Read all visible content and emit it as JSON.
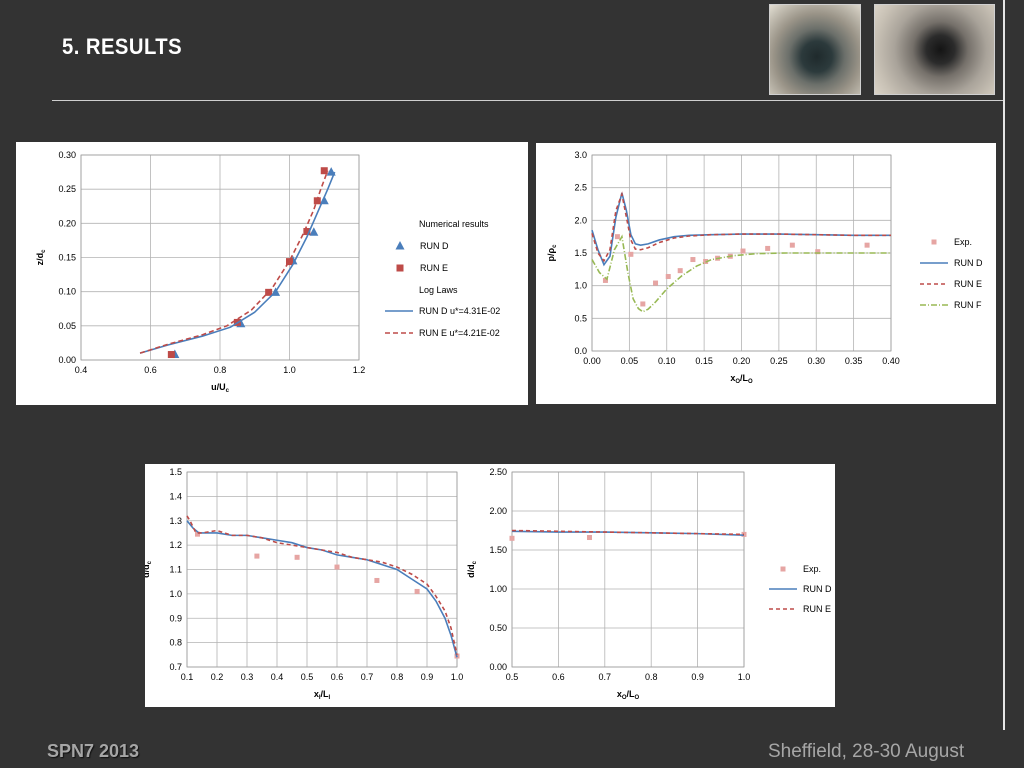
{
  "slide": {
    "title": "5. RESULTS",
    "footer_left": "SPN7 2013",
    "footer_right": "Sheffield, 28-30 August"
  },
  "colors": {
    "run_d": "#4a7ebb",
    "run_e": "#be4b48",
    "run_f": "#98b954",
    "exp": "#e6a5a3",
    "grid": "#b3b3b3"
  },
  "chart_data": [
    {
      "type": "scatter",
      "xlabel": "u/U",
      "xlabel_sub": "c",
      "ylabel": "z/d",
      "ylabel_sub": "c",
      "xlim": [
        0.4,
        1.2
      ],
      "ylim": [
        0.0,
        0.3
      ],
      "xticks": [
        "0.4",
        "0.6",
        "0.8",
        "1.0",
        "1.2"
      ],
      "yticks": [
        "0.00",
        "0.05",
        "0.10",
        "0.15",
        "0.20",
        "0.25",
        "0.30"
      ],
      "grid": true,
      "legend_position": "right",
      "legend_header_1": "Numerical results",
      "legend_header_2": "Log Laws",
      "series": [
        {
          "name": "RUN D",
          "kind": "markers",
          "marker": "triangle",
          "color": "#4a7ebb",
          "x": [
            0.67,
            0.86,
            0.96,
            1.01,
            1.07,
            1.1,
            1.12
          ],
          "y": [
            0.008,
            0.053,
            0.099,
            0.145,
            0.187,
            0.233,
            0.275
          ]
        },
        {
          "name": "RUN E",
          "kind": "markers",
          "marker": "square",
          "color": "#be4b48",
          "x": [
            0.66,
            0.85,
            0.94,
            1.0,
            1.05,
            1.08,
            1.1
          ],
          "y": [
            0.008,
            0.055,
            0.099,
            0.144,
            0.188,
            0.233,
            0.277
          ]
        },
        {
          "name": "RUN D u*=4.31E-02",
          "kind": "line",
          "dash": "",
          "color": "#4a7ebb",
          "x": [
            0.57,
            0.65,
            0.75,
            0.83,
            0.9,
            0.96,
            1.01,
            1.05,
            1.08,
            1.11,
            1.13
          ],
          "y": [
            0.01,
            0.022,
            0.035,
            0.048,
            0.07,
            0.1,
            0.14,
            0.18,
            0.215,
            0.25,
            0.275
          ]
        },
        {
          "name": "RUN E u*=4.21E-02",
          "kind": "line",
          "dash": "5,3",
          "color": "#be4b48",
          "x": [
            0.57,
            0.65,
            0.75,
            0.82,
            0.89,
            0.95,
            1.0,
            1.04,
            1.07,
            1.09,
            1.11
          ],
          "y": [
            0.01,
            0.023,
            0.037,
            0.05,
            0.073,
            0.105,
            0.145,
            0.185,
            0.22,
            0.25,
            0.277
          ]
        }
      ]
    },
    {
      "type": "line",
      "xlabel": "x/L",
      "xlabel_sub": "O",
      "xlabel_sub2": "O",
      "ylabel": "p/ρ",
      "ylabel_sub": "c",
      "xlim": [
        0.0,
        0.4
      ],
      "ylim": [
        0.0,
        3.0
      ],
      "xticks": [
        "0.00",
        "0.05",
        "0.10",
        "0.15",
        "0.20",
        "0.25",
        "0.30",
        "0.35",
        "0.40"
      ],
      "yticks": [
        "0.0",
        "0.5",
        "1.0",
        "1.5",
        "2.0",
        "2.5",
        "3.0"
      ],
      "grid": true,
      "legend_position": "right",
      "series": [
        {
          "name": "Exp.",
          "kind": "markers",
          "marker": "square",
          "color": "#e6a5a3",
          "x": [
            0.018,
            0.034,
            0.052,
            0.068,
            0.085,
            0.102,
            0.118,
            0.135,
            0.152,
            0.168,
            0.185,
            0.202,
            0.235,
            0.268,
            0.302,
            0.368
          ],
          "y": [
            1.08,
            1.75,
            1.48,
            0.72,
            1.04,
            1.14,
            1.23,
            1.4,
            1.37,
            1.42,
            1.45,
            1.53,
            1.57,
            1.62,
            1.52,
            1.62
          ]
        },
        {
          "name": "RUN D",
          "kind": "line",
          "dash": "",
          "color": "#4a7ebb",
          "x": [
            0.0,
            0.008,
            0.016,
            0.024,
            0.032,
            0.04,
            0.046,
            0.052,
            0.058,
            0.065,
            0.075,
            0.09,
            0.11,
            0.13,
            0.16,
            0.2,
            0.25,
            0.3,
            0.35,
            0.4
          ],
          "y": [
            1.85,
            1.55,
            1.32,
            1.45,
            2.05,
            2.42,
            2.15,
            1.78,
            1.64,
            1.62,
            1.64,
            1.7,
            1.75,
            1.77,
            1.78,
            1.79,
            1.79,
            1.78,
            1.77,
            1.77
          ]
        },
        {
          "name": "RUN E",
          "kind": "line",
          "dash": "4,3",
          "color": "#be4b48",
          "x": [
            0.0,
            0.008,
            0.016,
            0.024,
            0.032,
            0.04,
            0.046,
            0.052,
            0.058,
            0.065,
            0.075,
            0.09,
            0.11,
            0.13,
            0.16,
            0.2,
            0.25,
            0.3,
            0.35,
            0.4
          ],
          "y": [
            1.8,
            1.5,
            1.38,
            1.55,
            2.15,
            2.4,
            2.05,
            1.7,
            1.56,
            1.55,
            1.58,
            1.66,
            1.73,
            1.76,
            1.78,
            1.79,
            1.79,
            1.78,
            1.77,
            1.77
          ]
        },
        {
          "name": "RUN F",
          "kind": "line",
          "dash": "6,2,1,2",
          "color": "#98b954",
          "x": [
            0.0,
            0.01,
            0.02,
            0.03,
            0.04,
            0.048,
            0.055,
            0.062,
            0.068,
            0.075,
            0.085,
            0.1,
            0.12,
            0.14,
            0.16,
            0.19,
            0.22,
            0.26,
            0.3,
            0.35,
            0.4
          ],
          "y": [
            1.4,
            1.2,
            1.1,
            1.55,
            1.75,
            1.2,
            0.8,
            0.65,
            0.6,
            0.64,
            0.75,
            0.95,
            1.15,
            1.3,
            1.4,
            1.46,
            1.49,
            1.5,
            1.5,
            1.5,
            1.5
          ]
        }
      ]
    },
    {
      "type": "line",
      "xlabel": "x/L",
      "xlabel_sub": "I",
      "xlabel_sub2": "I",
      "ylabel": "d/d",
      "ylabel_sub": "c",
      "xlim": [
        0.1,
        1.0
      ],
      "ylim": [
        0.7,
        1.5
      ],
      "xticks": [
        "0.1",
        "0.2",
        "0.3",
        "0.4",
        "0.5",
        "0.6",
        "0.7",
        "0.8",
        "0.9",
        "1.0"
      ],
      "yticks": [
        "0.7",
        "0.8",
        "0.9",
        "1.0",
        "1.1",
        "1.2",
        "1.3",
        "1.4",
        "1.5"
      ],
      "grid": true,
      "legend_position": "none",
      "series": [
        {
          "name": "Exp.",
          "kind": "markers",
          "marker": "square",
          "color": "#e6a5a3",
          "x": [
            0.135,
            0.333,
            0.467,
            0.6,
            0.733,
            0.867,
            1.0
          ],
          "y": [
            1.245,
            1.155,
            1.15,
            1.11,
            1.055,
            1.01,
            0.745
          ]
        },
        {
          "name": "RUN D",
          "kind": "line",
          "dash": "",
          "color": "#4a7ebb",
          "x": [
            0.1,
            0.12,
            0.14,
            0.17,
            0.2,
            0.25,
            0.3,
            0.35,
            0.4,
            0.45,
            0.5,
            0.55,
            0.6,
            0.65,
            0.7,
            0.75,
            0.8,
            0.85,
            0.9,
            0.93,
            0.96,
            0.98,
            1.0
          ],
          "y": [
            1.3,
            1.27,
            1.25,
            1.25,
            1.25,
            1.24,
            1.24,
            1.23,
            1.22,
            1.21,
            1.19,
            1.18,
            1.16,
            1.15,
            1.14,
            1.12,
            1.1,
            1.06,
            1.02,
            0.97,
            0.9,
            0.83,
            0.74
          ]
        },
        {
          "name": "RUN E",
          "kind": "line",
          "dash": "4,3",
          "color": "#be4b48",
          "x": [
            0.1,
            0.11,
            0.13,
            0.15,
            0.2,
            0.25,
            0.3,
            0.35,
            0.4,
            0.45,
            0.5,
            0.55,
            0.6,
            0.65,
            0.7,
            0.75,
            0.8,
            0.85,
            0.9,
            0.93,
            0.96,
            0.98,
            1.0
          ],
          "y": [
            1.32,
            1.3,
            1.25,
            1.25,
            1.26,
            1.24,
            1.24,
            1.23,
            1.21,
            1.2,
            1.19,
            1.18,
            1.17,
            1.15,
            1.14,
            1.13,
            1.11,
            1.08,
            1.04,
            0.99,
            0.93,
            0.86,
            0.75
          ]
        }
      ]
    },
    {
      "type": "line",
      "xlabel": "x/L",
      "xlabel_sub": "O",
      "xlabel_sub2": "O",
      "ylabel": "d/d",
      "ylabel_sub": "c",
      "xlim": [
        0.5,
        1.0
      ],
      "ylim": [
        0.0,
        2.5
      ],
      "xticks": [
        "0.5",
        "0.6",
        "0.7",
        "0.8",
        "0.9",
        "1.0"
      ],
      "yticks": [
        "0.00",
        "0.50",
        "1.00",
        "1.50",
        "2.00",
        "2.50"
      ],
      "grid": true,
      "legend_position": "right",
      "series": [
        {
          "name": "Exp.",
          "kind": "markers",
          "marker": "square",
          "color": "#e6a5a3",
          "x": [
            0.5,
            0.667,
            1.0
          ],
          "y": [
            1.65,
            1.66,
            1.7
          ]
        },
        {
          "name": "RUN D",
          "kind": "line",
          "dash": "",
          "color": "#4a7ebb",
          "x": [
            0.5,
            0.6,
            0.7,
            0.8,
            0.9,
            1.0
          ],
          "y": [
            1.74,
            1.73,
            1.73,
            1.72,
            1.71,
            1.69
          ]
        },
        {
          "name": "RUN E",
          "kind": "line",
          "dash": "4,3",
          "color": "#be4b48",
          "x": [
            0.5,
            0.6,
            0.7,
            0.8,
            0.9,
            1.0
          ],
          "y": [
            1.75,
            1.74,
            1.73,
            1.72,
            1.71,
            1.7
          ]
        }
      ]
    }
  ]
}
